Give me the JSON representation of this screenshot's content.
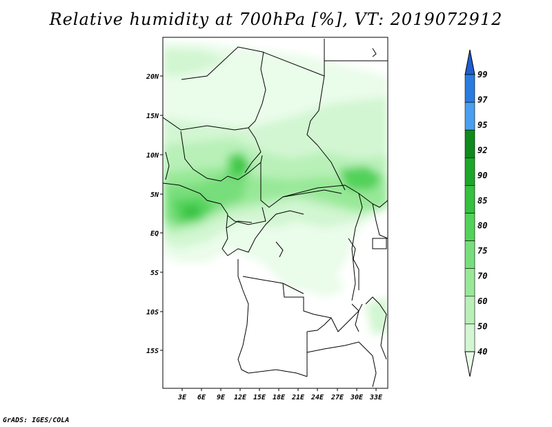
{
  "title": "Relative humidity at 700hPa [%], VT: 2019072912",
  "credit": "GrADS: IGES/COLA",
  "map": {
    "lat_ticks": [
      "20N",
      "15N",
      "10N",
      "5N",
      "EQ",
      "5S",
      "10S",
      "15S"
    ],
    "lon_ticks": [
      "3E",
      "6E",
      "9E",
      "12E",
      "15E",
      "18E",
      "21E",
      "24E",
      "27E",
      "30E",
      "33E"
    ]
  },
  "colorbar": {
    "levels": [
      "99",
      "97",
      "95",
      "92",
      "90",
      "85",
      "80",
      "75",
      "70",
      "60",
      "50",
      "40"
    ],
    "colors": [
      "#1e5fcf",
      "#2a7be0",
      "#4a9ff0",
      "#0f8a1c",
      "#1ea62a",
      "#35c040",
      "#52d25a",
      "#78de7c",
      "#98e898",
      "#b8f0b8",
      "#d2f6d2",
      "#eafcea"
    ]
  }
}
